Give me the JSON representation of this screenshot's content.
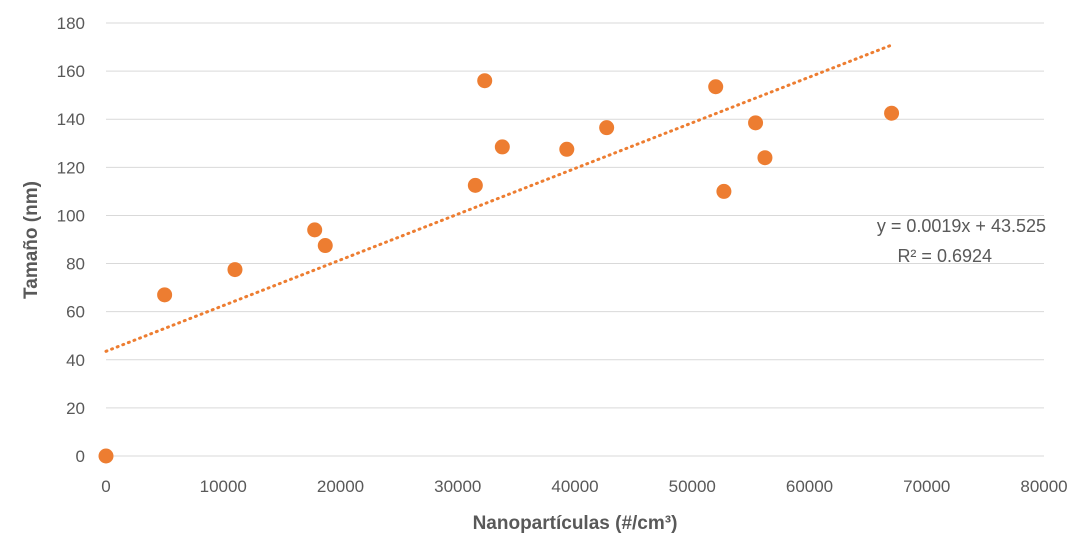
{
  "chart_data": {
    "type": "scatter",
    "xlabel": "Nanopartículas (#/cm³)",
    "ylabel": "Tamaño (nm)",
    "xlim": [
      0,
      80000
    ],
    "ylim": [
      0,
      180
    ],
    "xticks": [
      0,
      10000,
      20000,
      30000,
      40000,
      50000,
      60000,
      70000,
      80000
    ],
    "yticks": [
      0,
      20,
      40,
      60,
      80,
      100,
      120,
      140,
      160,
      180
    ],
    "grid": "horizontal",
    "legend": "none",
    "series": [
      {
        "marker_color": "#ED7D31",
        "points": [
          {
            "x": 0,
            "y": 0
          },
          {
            "x": 5000,
            "y": 67
          },
          {
            "x": 11000,
            "y": 77.5
          },
          {
            "x": 17800,
            "y": 94
          },
          {
            "x": 18700,
            "y": 87.5
          },
          {
            "x": 31500,
            "y": 112.5
          },
          {
            "x": 32300,
            "y": 156
          },
          {
            "x": 33800,
            "y": 128.5
          },
          {
            "x": 39300,
            "y": 127.5
          },
          {
            "x": 42700,
            "y": 136.5
          },
          {
            "x": 52000,
            "y": 153.5
          },
          {
            "x": 52700,
            "y": 110
          },
          {
            "x": 55400,
            "y": 138.5
          },
          {
            "x": 56200,
            "y": 124
          },
          {
            "x": 67000,
            "y": 142.5
          }
        ]
      }
    ],
    "trendline": {
      "type": "linear",
      "style": "dotted",
      "color": "#ED7D31",
      "slope": 0.0019,
      "intercept": 43.525,
      "x_range": [
        0,
        67000
      ],
      "equation_text": "y = 0.0019x + 43.525",
      "r2_text": "R² = 0.6924"
    }
  }
}
